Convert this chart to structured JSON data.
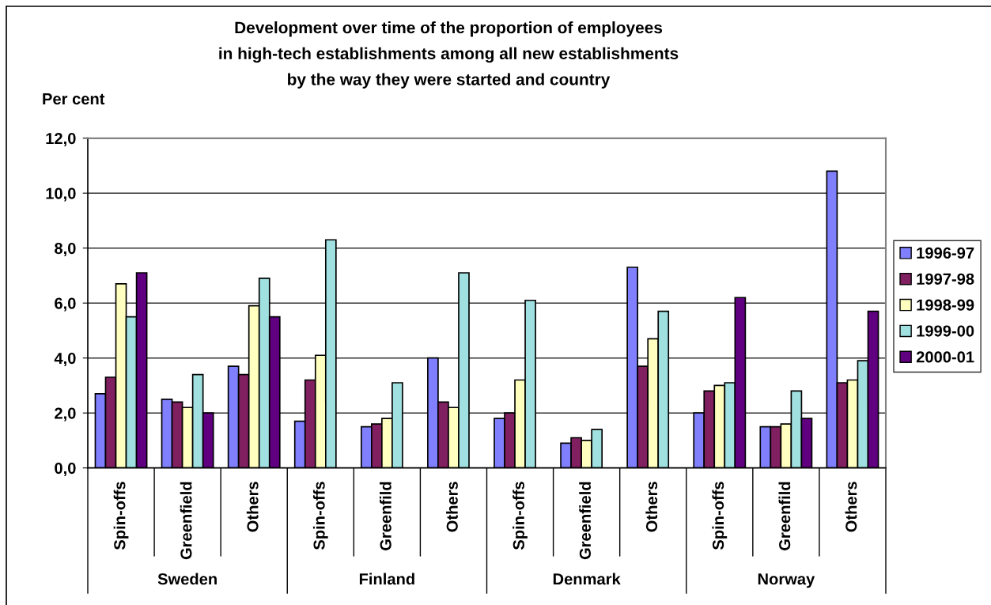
{
  "chart_data": {
    "type": "bar",
    "title": "Development over time of the proportion of employees\nin high-tech establishments among all new establishments\nby the way they were started and country",
    "ylabel": "Per cent",
    "categories": [
      "Spin-offs",
      "Greenfield",
      "Others",
      "Spin-offs",
      "Greenfild",
      "Others",
      "Spin-offs",
      "Greenfield",
      "Others",
      "Spin-offs",
      "Greenfild",
      "Others"
    ],
    "annotations": [
      "Sweden",
      "Finland",
      "Denmark",
      "Norway"
    ],
    "series": [
      {
        "name": "1996-97",
        "color": "#8080ff",
        "values": [
          2.7,
          2.5,
          3.7,
          1.7,
          1.5,
          4.0,
          1.8,
          0.9,
          7.3,
          2.0,
          1.5,
          10.8
        ]
      },
      {
        "name": "1997-98",
        "color": "#802060",
        "values": [
          3.3,
          2.4,
          3.4,
          3.2,
          1.6,
          2.4,
          2.0,
          1.1,
          3.7,
          2.8,
          1.5,
          3.1
        ]
      },
      {
        "name": "1998-99",
        "color": "#ffffc0",
        "values": [
          6.7,
          2.2,
          5.9,
          4.1,
          1.8,
          2.2,
          3.2,
          1.0,
          4.7,
          3.0,
          1.6,
          3.2
        ]
      },
      {
        "name": "1999-00",
        "color": "#a0e0e0",
        "values": [
          5.5,
          3.4,
          6.9,
          8.3,
          3.1,
          7.1,
          6.1,
          1.4,
          5.7,
          3.1,
          2.8,
          3.9
        ]
      },
      {
        "name": "2000-01",
        "color": "#600080",
        "values": [
          7.1,
          2.0,
          5.5,
          null,
          null,
          null,
          null,
          null,
          null,
          6.2,
          1.8,
          5.7
        ]
      }
    ],
    "ylim": [
      0,
      12
    ],
    "yticks": [
      {
        "value": 0,
        "label": "0,0"
      },
      {
        "value": 2,
        "label": "2,0"
      },
      {
        "value": 4,
        "label": "4,0"
      },
      {
        "value": 6,
        "label": "6,0"
      },
      {
        "value": 8,
        "label": "8,0"
      },
      {
        "value": 10,
        "label": "10,0"
      },
      {
        "value": 12,
        "label": "12,0"
      }
    ],
    "grid": "y",
    "legend": "right"
  }
}
